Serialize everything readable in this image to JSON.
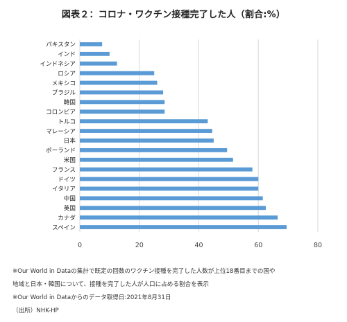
{
  "chart_data": {
    "type": "bar",
    "orientation": "horizontal",
    "title": "図表２：コロナ・ワクチン接種完了した人（割合:%）",
    "categories": [
      "パキスタン",
      "インド",
      "インドネシア",
      "ロシア",
      "メキシコ",
      "ブラジル",
      "韓国",
      "コロンビア",
      "トルコ",
      "マレーシア",
      "日本",
      "ポーランド",
      "米国",
      "フランス",
      "ドイツ",
      "イタリア",
      "中国",
      "英国",
      "カナダ",
      "スペイン"
    ],
    "values": [
      7.5,
      10,
      12.5,
      25,
      26,
      28,
      28.5,
      28.5,
      43,
      44.5,
      45,
      49.5,
      51.5,
      58,
      60,
      60,
      61.5,
      62.5,
      66.5,
      69.5
    ],
    "xlim": [
      0,
      80
    ],
    "xticks": [
      0,
      20,
      40,
      60,
      80
    ],
    "grid": true,
    "bar_color": "#5b9bd5",
    "notes": [
      "※Our World in Dataの集計で既定の回数のワクチン接種を完了した人数が上位18番目までの国や",
      "地域と日本・韓国について、接種を完了した人が人口に占める割合を表示",
      "※Our World in Dataからのデータ取得日:2021年8月31日",
      "（出所）NHK-HP"
    ]
  }
}
